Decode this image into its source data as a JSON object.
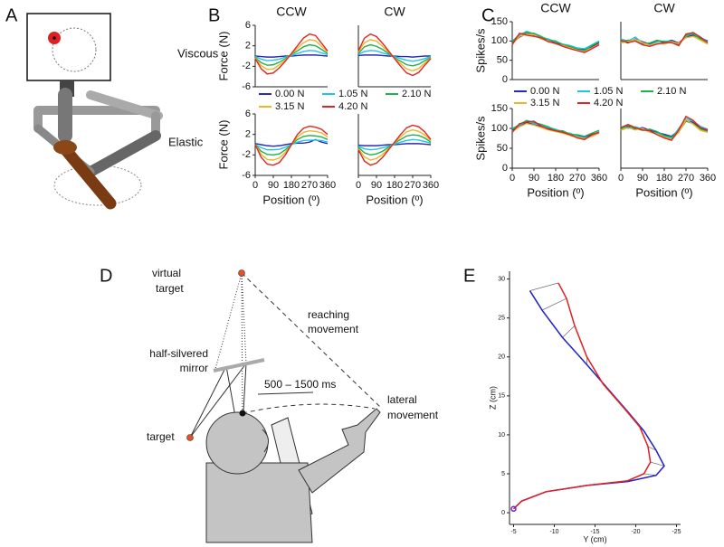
{
  "panel_labels": {
    "a": "A",
    "b": "B",
    "c": "C",
    "d": "D",
    "e": "E"
  },
  "row_labels": {
    "viscous": "Viscous",
    "elastic": "Elastic"
  },
  "diagram_d": {
    "virtual_target": [
      "virtual",
      "target"
    ],
    "reaching_movement": [
      "reaching",
      "movement"
    ],
    "mirror": [
      "half-silvered",
      "mirror"
    ],
    "timing": "500 – 1500 ms",
    "lateral_movement": [
      "lateral",
      "movement"
    ],
    "target": "target"
  },
  "chart_data": [
    {
      "type": "line",
      "title": "CCW",
      "ylabel": "Force (N)",
      "x": [
        0,
        30,
        60,
        90,
        120,
        150,
        180,
        210,
        240,
        270,
        300,
        330,
        360
      ],
      "xlim": [
        0,
        360
      ],
      "ylim": [
        -6,
        6
      ],
      "yticks": [
        -6,
        -2,
        2,
        6
      ],
      "series": [
        {
          "name": "0.00 N",
          "color": "#2a2ab8",
          "values": [
            0,
            -0.1,
            -0.2,
            -0.2,
            -0.1,
            0,
            0,
            0.1,
            0.2,
            0.2,
            0.2,
            0.1,
            0
          ]
        },
        {
          "name": "1.05 N",
          "color": "#22c4e6",
          "values": [
            -0.1,
            -0.6,
            -0.9,
            -0.8,
            -0.6,
            -0.2,
            0.1,
            0.5,
            0.9,
            1.1,
            1,
            0.6,
            0.3
          ]
        },
        {
          "name": "2.10 N",
          "color": "#22b04a",
          "values": [
            -0.3,
            -1.3,
            -1.8,
            -1.7,
            -1.2,
            -0.5,
            0.3,
            1,
            1.8,
            2.2,
            2,
            1.3,
            0.5
          ]
        },
        {
          "name": "3.15 N",
          "color": "#f0b428",
          "values": [
            -0.4,
            -1.9,
            -2.6,
            -2.5,
            -1.7,
            -0.8,
            0.4,
            1.5,
            2.6,
            3.2,
            3,
            1.9,
            0.8
          ]
        },
        {
          "name": "4.20 N",
          "color": "#e02424",
          "values": [
            -0.5,
            -2.5,
            -3.5,
            -3.3,
            -2.3,
            -1,
            0.5,
            2,
            3.5,
            4.3,
            4,
            2.5,
            1
          ]
        }
      ]
    },
    {
      "type": "line",
      "title": "CW",
      "x": [
        0,
        30,
        60,
        90,
        120,
        150,
        180,
        210,
        240,
        270,
        300,
        330,
        360
      ],
      "xlim": [
        0,
        360
      ],
      "ylim": [
        -6,
        6
      ],
      "series": [
        {
          "name": "0.00 N",
          "color": "#2a2ab8",
          "values": [
            0.1,
            0.2,
            0.2,
            0.2,
            0.1,
            0,
            0,
            -0.1,
            -0.1,
            -0.2,
            -0.1,
            0,
            0
          ]
        },
        {
          "name": "1.05 N",
          "color": "#22c4e6",
          "values": [
            0.3,
            0.9,
            1.1,
            1,
            0.6,
            0.3,
            -0.1,
            -0.5,
            -0.8,
            -1,
            -0.8,
            -0.5,
            -0.1
          ]
        },
        {
          "name": "2.10 N",
          "color": "#22b04a",
          "values": [
            0.5,
            1.8,
            2.2,
            1.9,
            1.3,
            0.5,
            -0.3,
            -1,
            -1.7,
            -1.9,
            -1.6,
            -0.9,
            -0.3
          ]
        },
        {
          "name": "3.15 N",
          "color": "#f0b428",
          "values": [
            0.8,
            2.6,
            3.2,
            2.9,
            1.9,
            0.8,
            -0.4,
            -1.5,
            -2.5,
            -2.9,
            -2.4,
            -1.4,
            -0.4
          ]
        },
        {
          "name": "4.20 N",
          "color": "#e02424",
          "values": [
            1,
            3.5,
            4.3,
            3.8,
            2.5,
            1,
            -0.5,
            -2,
            -3.3,
            -3.8,
            -3.2,
            -1.8,
            -0.5
          ]
        }
      ]
    },
    {
      "type": "line",
      "ylabel": "Force (N)",
      "xlabel": "Position (º)",
      "x": [
        0,
        30,
        60,
        90,
        120,
        150,
        180,
        210,
        240,
        270,
        300,
        330,
        360
      ],
      "xlim": [
        0,
        360
      ],
      "ylim": [
        -6,
        6
      ],
      "yticks": [
        -6,
        -2,
        2,
        6
      ],
      "xticks": [
        0,
        90,
        180,
        270,
        360
      ],
      "series": [
        {
          "name": "0.00 N",
          "color": "#2a2ab8",
          "values": [
            0.2,
            0,
            -0.2,
            -0.3,
            -0.2,
            0,
            0.2,
            0.3,
            0.3,
            0.5,
            1,
            0.5,
            0.2
          ]
        },
        {
          "name": "1.05 N",
          "color": "#22c4e6",
          "values": [
            0,
            -0.6,
            -1,
            -1,
            -0.9,
            -0.5,
            0,
            0.5,
            0.8,
            0.9,
            0.9,
            0.8,
            0.5
          ]
        },
        {
          "name": "2.10 N",
          "color": "#22b04a",
          "values": [
            0,
            -1.3,
            -1.9,
            -2,
            -1.8,
            -1,
            0,
            1,
            1.6,
            1.8,
            1.7,
            1.5,
            1
          ]
        },
        {
          "name": "3.15 N",
          "color": "#f0b428",
          "values": [
            0,
            -1.9,
            -2.9,
            -3,
            -2.6,
            -1.5,
            0,
            1.5,
            2.4,
            2.7,
            2.6,
            2.3,
            1.5
          ]
        },
        {
          "name": "4.20 N",
          "color": "#e02424",
          "values": [
            0,
            -2.5,
            -3.8,
            -4,
            -3.5,
            -2,
            0,
            2,
            3.2,
            3.6,
            3.4,
            3,
            2
          ]
        }
      ]
    },
    {
      "type": "line",
      "xlabel": "Position (º)",
      "x": [
        0,
        30,
        60,
        90,
        120,
        150,
        180,
        210,
        240,
        270,
        300,
        330,
        360
      ],
      "xlim": [
        0,
        360
      ],
      "ylim": [
        -6,
        6
      ],
      "xticks": [
        0,
        90,
        180,
        270,
        360
      ],
      "series": [
        {
          "name": "0.00 N",
          "color": "#2a2ab8",
          "values": [
            -0.1,
            -0.2,
            -0.2,
            -0.2,
            -0.1,
            0,
            0,
            0.1,
            0.2,
            0.2,
            0.2,
            0.1,
            0
          ]
        },
        {
          "name": "1.05 N",
          "color": "#22c4e6",
          "values": [
            -0.3,
            -0.8,
            -1,
            -0.9,
            -0.6,
            -0.3,
            0.1,
            0.5,
            0.8,
            1,
            0.9,
            0.6,
            0.3
          ]
        },
        {
          "name": "2.10 N",
          "color": "#22b04a",
          "values": [
            -0.5,
            -1.6,
            -2,
            -1.8,
            -1.3,
            -0.5,
            0.3,
            1,
            1.7,
            1.9,
            1.8,
            1.3,
            0.5
          ]
        },
        {
          "name": "3.15 N",
          "color": "#f0b428",
          "values": [
            -0.8,
            -2.4,
            -3,
            -2.7,
            -1.9,
            -0.8,
            0.4,
            1.5,
            2.5,
            2.9,
            2.6,
            1.9,
            0.8
          ]
        },
        {
          "name": "4.20 N",
          "color": "#e02424",
          "values": [
            -1,
            -3.2,
            -4,
            -3.6,
            -2.5,
            -1,
            0.5,
            2,
            3.3,
            3.8,
            3.5,
            2.5,
            1
          ]
        }
      ]
    },
    {
      "type": "line",
      "title": "CCW",
      "ylabel": "Spikes/s",
      "x": [
        0,
        30,
        60,
        90,
        120,
        150,
        180,
        210,
        240,
        270,
        300,
        330,
        360
      ],
      "xlim": [
        0,
        360
      ],
      "ylim": [
        0,
        150
      ],
      "yticks": [
        0,
        50,
        100,
        150
      ],
      "series": [
        {
          "name": "0.00 N",
          "color": "#2a2ab8",
          "values": [
            95,
            110,
            120,
            115,
            108,
            100,
            95,
            90,
            85,
            80,
            78,
            85,
            95
          ]
        },
        {
          "name": "1.05 N",
          "color": "#22c4e6",
          "values": [
            100,
            115,
            125,
            118,
            110,
            105,
            98,
            92,
            88,
            82,
            80,
            90,
            100
          ]
        },
        {
          "name": "2.10 N",
          "color": "#22b04a",
          "values": [
            98,
            118,
            122,
            120,
            112,
            102,
            100,
            90,
            86,
            78,
            75,
            88,
            98
          ]
        },
        {
          "name": "3.15 N",
          "color": "#f0b428",
          "values": [
            92,
            112,
            118,
            116,
            105,
            100,
            92,
            88,
            82,
            76,
            72,
            82,
            92
          ]
        },
        {
          "name": "4.20 N",
          "color": "#e02424",
          "values": [
            90,
            120,
            115,
            112,
            108,
            98,
            94,
            86,
            80,
            75,
            70,
            80,
            90
          ]
        }
      ]
    },
    {
      "type": "line",
      "title": "CW",
      "x": [
        0,
        30,
        60,
        90,
        120,
        150,
        180,
        210,
        240,
        270,
        300,
        330,
        360
      ],
      "xlim": [
        0,
        360
      ],
      "ylim": [
        0,
        150
      ],
      "series": [
        {
          "name": "0.00 N",
          "color": "#2a2ab8",
          "values": [
            100,
            95,
            105,
            98,
            92,
            100,
            96,
            102,
            95,
            110,
            115,
            108,
            100
          ]
        },
        {
          "name": "1.05 N",
          "color": "#22c4e6",
          "values": [
            105,
            100,
            110,
            95,
            90,
            98,
            100,
            95,
            92,
            112,
            120,
            110,
            98
          ]
        },
        {
          "name": "2.10 N",
          "color": "#22b04a",
          "values": [
            98,
            102,
            100,
            92,
            95,
            102,
            98,
            100,
            90,
            115,
            118,
            105,
            95
          ]
        },
        {
          "name": "3.15 N",
          "color": "#f0b428",
          "values": [
            95,
            98,
            104,
            96,
            88,
            95,
            92,
            98,
            94,
            108,
            112,
            102,
            92
          ]
        },
        {
          "name": "4.20 N",
          "color": "#e02424",
          "values": [
            102,
            96,
            100,
            90,
            86,
            92,
            95,
            96,
            88,
            118,
            122,
            110,
            96
          ]
        }
      ]
    },
    {
      "type": "line",
      "ylabel": "Spikes/s",
      "xlabel": "Position (º)",
      "x": [
        0,
        30,
        60,
        90,
        120,
        150,
        180,
        210,
        240,
        270,
        300,
        330,
        360
      ],
      "xlim": [
        0,
        360
      ],
      "ylim": [
        0,
        150
      ],
      "yticks": [
        0,
        50,
        100,
        150
      ],
      "xticks": [
        0,
        90,
        180,
        270,
        360
      ],
      "series": [
        {
          "name": "0.00 N",
          "color": "#2a2ab8",
          "values": [
            95,
            105,
            115,
            110,
            105,
            100,
            96,
            92,
            86,
            82,
            78,
            85,
            90
          ]
        },
        {
          "name": "1.05 N",
          "color": "#22c4e6",
          "values": [
            100,
            108,
            118,
            112,
            108,
            102,
            98,
            90,
            88,
            80,
            76,
            82,
            92
          ]
        },
        {
          "name": "2.10 N",
          "color": "#22b04a",
          "values": [
            98,
            110,
            120,
            115,
            110,
            104,
            95,
            94,
            85,
            84,
            80,
            88,
            95
          ]
        },
        {
          "name": "3.15 N",
          "color": "#f0b428",
          "values": [
            92,
            104,
            112,
            108,
            102,
            96,
            92,
            88,
            82,
            78,
            74,
            80,
            88
          ]
        },
        {
          "name": "4.20 N",
          "color": "#e02424",
          "values": [
            90,
            112,
            116,
            118,
            106,
            98,
            94,
            90,
            84,
            76,
            72,
            84,
            90
          ]
        }
      ]
    },
    {
      "type": "line",
      "xlabel": "Position (º)",
      "x": [
        0,
        30,
        60,
        90,
        120,
        150,
        180,
        210,
        240,
        270,
        300,
        330,
        360
      ],
      "xlim": [
        0,
        360
      ],
      "ylim": [
        0,
        150
      ],
      "xticks": [
        0,
        90,
        180,
        270,
        360
      ],
      "series": [
        {
          "name": "0.00 N",
          "color": "#2a2ab8",
          "values": [
            100,
            105,
            98,
            102,
            95,
            90,
            85,
            80,
            95,
            120,
            115,
            100,
            95
          ]
        },
        {
          "name": "1.05 N",
          "color": "#22c4e6",
          "values": [
            105,
            100,
            104,
            98,
            92,
            88,
            80,
            75,
            100,
            125,
            118,
            105,
            98
          ]
        },
        {
          "name": "2.10 N",
          "color": "#22b04a",
          "values": [
            98,
            108,
            100,
            95,
            98,
            92,
            82,
            78,
            92,
            118,
            112,
            98,
            92
          ]
        },
        {
          "name": "3.15 N",
          "color": "#f0b428",
          "values": [
            95,
            102,
            96,
            100,
            90,
            86,
            78,
            72,
            90,
            122,
            110,
            95,
            90
          ]
        },
        {
          "name": "4.20 N",
          "color": "#e02424",
          "values": [
            102,
            110,
            102,
            96,
            94,
            84,
            76,
            70,
            96,
            130,
            120,
            102,
            96
          ]
        }
      ]
    },
    {
      "type": "line",
      "xlabel": "Y (cm)",
      "ylabel": "Z (cm)",
      "xlim": [
        -4.5,
        -25.5
      ],
      "ylim": [
        -1.5,
        31
      ],
      "xticks": [
        -5,
        -10,
        -15,
        -20,
        -25
      ],
      "yticks": [
        0,
        5,
        10,
        15,
        20,
        25,
        30
      ],
      "series": [
        {
          "color": "#2020c8",
          "x": [
            -5,
            -6,
            -9,
            -14,
            -19,
            -22.5,
            -23.5,
            -22.5,
            -21,
            -19,
            -16.5,
            -14,
            -11,
            -8.5,
            -7
          ],
          "values": [
            0.5,
            1.5,
            2.7,
            3.5,
            4,
            4.8,
            6,
            8,
            10.5,
            13,
            16,
            19,
            22.5,
            26,
            28.5
          ]
        },
        {
          "color": "#e02020",
          "x": [
            -5,
            -6,
            -9,
            -14,
            -19,
            -21,
            -21.8,
            -21.5,
            -20.5,
            -18.5,
            -16,
            -14,
            -12.5,
            -11.5,
            -10.5
          ],
          "values": [
            0.5,
            1.5,
            2.7,
            3.5,
            4.1,
            5,
            6.5,
            8.5,
            11,
            13.5,
            16.5,
            20,
            24,
            27.5,
            29.5
          ]
        }
      ]
    }
  ]
}
